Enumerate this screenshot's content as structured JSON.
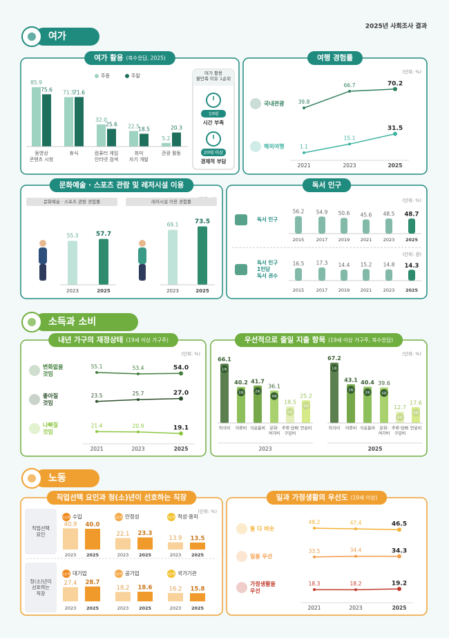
{
  "page_title": "2025년 사회조사 결과",
  "sections": [
    {
      "title": "여가",
      "color": "#1f8a7e",
      "panels": [
        {
          "type": "bar",
          "title": "여가 활용",
          "subtitle": "(복수응답, 2025)",
          "unit": "(단위: %)",
          "categories": [
            [
              "동영상",
              "콘텐츠 시청"
            ],
            [
              "휴식"
            ],
            [
              "컴퓨터 게임",
              "인터넷 검색"
            ],
            [
              "취미",
              "자기 개발"
            ],
            [
              "관광 활동"
            ]
          ],
          "series": [
            {
              "name": "주중",
              "color": "#9fd3c1",
              "values": [
                85.9,
                71.5,
                32,
                22.5,
                5.2
              ],
              "value_labels": [
                "85.9",
                "71.5",
                "32.0",
                "22.5",
                "5.2"
              ]
            },
            {
              "name": "주말",
              "color": "#1e6f5c",
              "values": [
                75.6,
                71.6,
                25.6,
                18.5,
                20.3
              ]
            }
          ],
          "note": {
            "title": [
              "여가 활용",
              "불만족 이유 1순위"
            ],
            "items": [
              {
                "group": "10대",
                "reason": "시간 부족"
              },
              {
                "group": "20대 이상",
                "reason": "경제적 부담"
              }
            ]
          }
        },
        {
          "type": "line",
          "title": "여행 경험률",
          "unit": "(단위: %)",
          "x": [
            "2021",
            "2023",
            "2025"
          ],
          "series": [
            {
              "name": [
                "국내관광"
              ],
              "color": "#2e7d5b",
              "values": [
                39.8,
                66.7,
                70.2
              ]
            },
            {
              "name": [
                "해외여행"
              ],
              "color": "#3fb3a2",
              "values": [
                1.1,
                15.1,
                31.5
              ]
            }
          ]
        },
        {
          "type": "paired_bar",
          "title": "문화예술 · 스포츠 관람 및 레저시설 이용",
          "unit": "(단위: %)",
          "x": [
            "2023",
            "2025"
          ],
          "colors": [
            "#bfe3d8",
            "#2e8b6e"
          ],
          "groups": [
            {
              "name": "문화예술 · 스포츠 관람 경험률",
              "values": [
                55.3,
                57.7
              ]
            },
            {
              "name": "레저시설 이용 경험률",
              "values": [
                69.1,
                73.5
              ]
            }
          ]
        },
        {
          "type": "pictogram",
          "title": "독서 인구",
          "color": "#2e8b6e",
          "rows": [
            {
              "name": [
                "독서 인구"
              ],
              "unit": "(단위: %)",
              "x": [
                "2015",
                "2017",
                "2019",
                "2021",
                "2023",
                "2025"
              ],
              "values": [
                56.2,
                54.9,
                50.6,
                45.6,
                48.5,
                48.7
              ]
            },
            {
              "name": [
                "독서 인구",
                "1인당",
                "독서 권수"
              ],
              "unit": "(단위: 권)",
              "x": [
                "2015",
                "2017",
                "2019",
                "2021",
                "2023",
                "2025"
              ],
              "values": [
                16.5,
                17.3,
                14.4,
                15.2,
                14.8,
                14.3
              ]
            }
          ]
        }
      ]
    },
    {
      "title": "소득과 소비",
      "color": "#6fae3f",
      "panels": [
        {
          "type": "line",
          "title": "내년 가구의 재정상태",
          "subtitle": "(19세 이상 가구주)",
          "unit": "(단위: %)",
          "x": [
            "2021",
            "2023",
            "2025"
          ],
          "series": [
            {
              "name": [
                "변화없을",
                "것임"
              ],
              "color": "#3f7d3a",
              "values": [
                55.1,
                53.4,
                54
              ],
              "value_labels": [
                "55.1",
                "53.4",
                "54.0"
              ]
            },
            {
              "name": [
                "좋아질",
                "것임"
              ],
              "color": "#2c4f2a",
              "values": [
                23.5,
                25.7,
                27
              ],
              "value_labels": [
                "23.5",
                "25.7",
                "27.0"
              ]
            },
            {
              "name": [
                "나빠질",
                "것임"
              ],
              "color": "#8cc63f",
              "values": [
                21.4,
                20.9,
                19.1
              ]
            }
          ]
        },
        {
          "type": "rank_bar",
          "title": "우선적으로 줄일 지출 항목",
          "subtitle": "(19세 이상 가구주, 복수응답)",
          "unit": "(단위: %)",
          "categories": [
            [
              "외식비"
            ],
            [
              "의류비"
            ],
            [
              "식료품비"
            ],
            [
              "문화·",
              "여가비"
            ],
            [
              "주류·담배",
              "구입비"
            ],
            [
              "연료비"
            ]
          ],
          "groups": [
            {
              "name": "2023",
              "values": [
                66.1,
                40.2,
                41.7,
                36.1,
                18.5,
                25.2
              ],
              "ranks": [
                "1위",
                "3위",
                "2위",
                "4위",
                "6위",
                "5위"
              ],
              "colors": [
                "#5b7f4e",
                "#8dbf5a",
                "#76a84a",
                "#a9d16e",
                "#e3efb8",
                "#d6ea8a"
              ]
            },
            {
              "name": "2025",
              "values": [
                67.2,
                43.1,
                40.4,
                39.6,
                12.7,
                17.6
              ],
              "ranks": [
                "1위",
                "2위",
                "3위",
                "4위",
                "6위",
                "5위"
              ],
              "colors": [
                "#5b7f4e",
                "#76a84a",
                "#8dbf5a",
                "#a9d16e",
                "#e3efb8",
                "#d6ea8a"
              ]
            }
          ]
        }
      ]
    },
    {
      "title": "노동",
      "color": "#f0a030",
      "panels": [
        {
          "type": "rank_pairs",
          "title": "직업선택 요인과 청(소)년이 선호하는 직장",
          "unit": "(단위: %)",
          "x": [
            "2023",
            "2025"
          ],
          "colors": [
            "#f8d29a",
            "#ef9a2a"
          ],
          "rank_colors": [
            "#ef8a1f",
            "#f5a94a",
            "#f2c230"
          ],
          "groups": [
            {
              "name": [
                "직업선택",
                "요인"
              ],
              "items": [
                {
                  "rank": "1순위",
                  "name": "수입",
                  "values": [
                    40.9,
                    40
                  ],
                  "value_labels": [
                    "40.9",
                    "40.0"
                  ]
                },
                {
                  "rank": "2순위",
                  "name": "안정성",
                  "values": [
                    22.1,
                    23.3
                  ]
                },
                {
                  "rank": "3순위",
                  "name": "적성·흥미",
                  "values": [
                    13.9,
                    13.5
                  ]
                }
              ]
            },
            {
              "name": [
                "청(소)년이",
                "선호하는",
                "직장"
              ],
              "items": [
                {
                  "rank": "1순위",
                  "name": "대기업",
                  "values": [
                    27.4,
                    28.7
                  ]
                },
                {
                  "rank": "2순위",
                  "name": "공기업",
                  "values": [
                    18.2,
                    18.6
                  ]
                },
                {
                  "rank": "3순위",
                  "name": "국가기관",
                  "values": [
                    16.2,
                    15.8
                  ]
                }
              ]
            }
          ]
        },
        {
          "type": "line",
          "title": "일과 가정생활의 우선도",
          "subtitle": "(19세 이상)",
          "x": [
            "2021",
            "2023",
            "2025"
          ],
          "series": [
            {
              "name": [
                "둘 다 비슷"
              ],
              "color": "#f2b134",
              "values": [
                48.2,
                47.4,
                46.5
              ]
            },
            {
              "name": [
                "일을 우선"
              ],
              "color": "#f39c4a",
              "values": [
                33.5,
                34.4,
                34.3
              ]
            },
            {
              "name": [
                "가정생활을",
                "우선"
              ],
              "color": "#c0392b",
              "values": [
                18.3,
                18.2,
                19.2
              ]
            }
          ]
        }
      ]
    }
  ]
}
